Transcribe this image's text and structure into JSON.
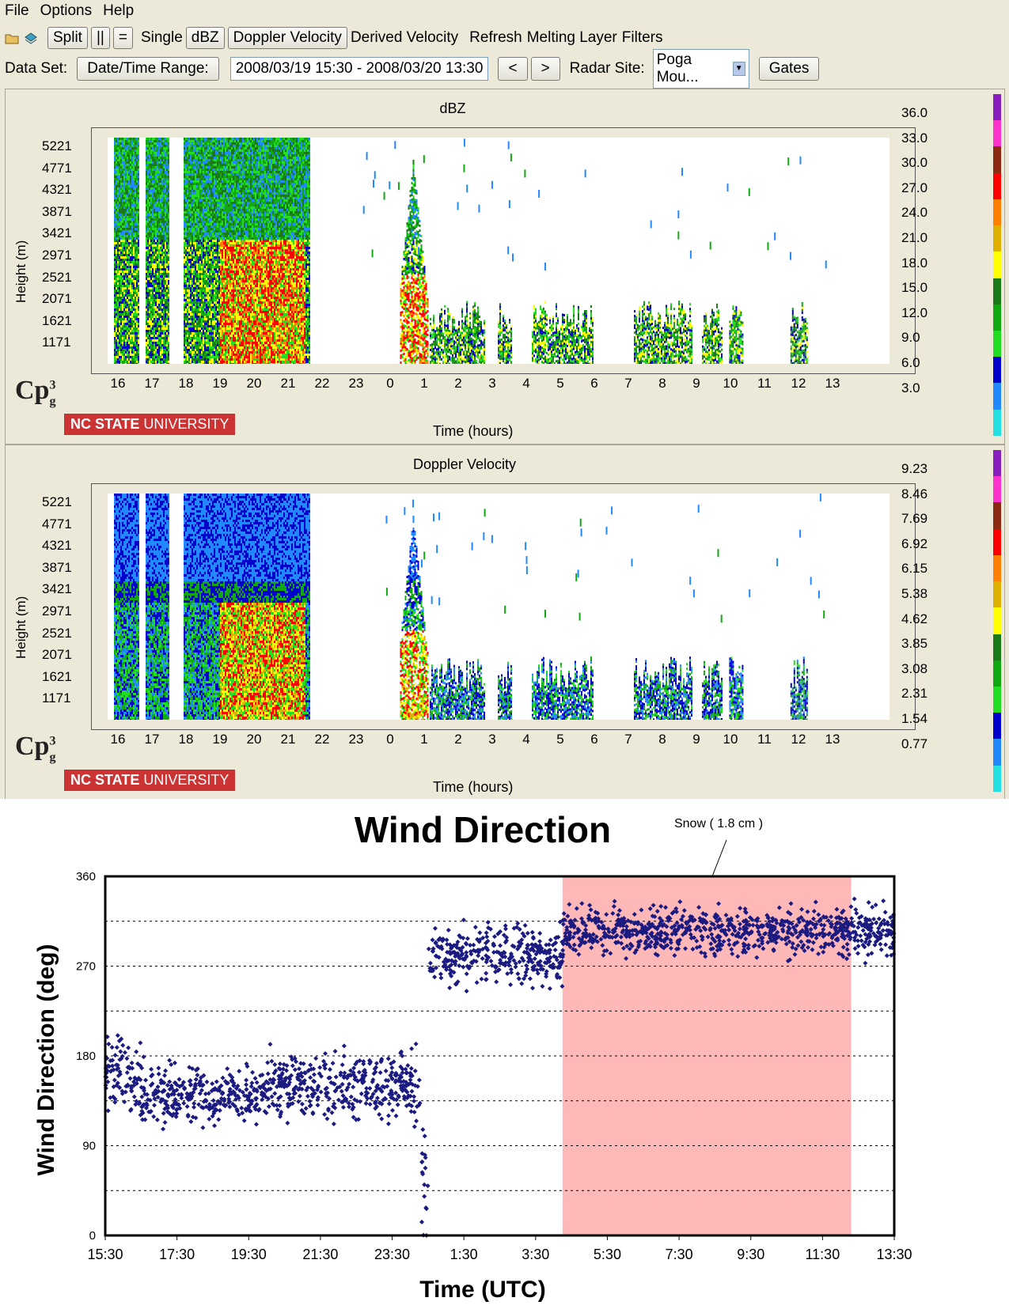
{
  "menu": [
    "File",
    "Options",
    "Help"
  ],
  "toolbar": {
    "split": "Split",
    "pipes": "||",
    "equal": "=",
    "single": "Single",
    "dbz": "dBZ",
    "doppler": "Doppler Velocity",
    "derived": "Derived Velocity",
    "refresh": "Refresh",
    "melting": "Melting Layer",
    "filters": "Filters"
  },
  "dataset": {
    "label": "Data Set:",
    "range_button": "Date/Time Range:",
    "range_value": "2008/03/19 15:30 - 2008/03/20 13:30",
    "prev": "<",
    "next": ">",
    "radar_label": "Radar Site:",
    "radar_value": "Poga Mou...",
    "gates": "Gates"
  },
  "logo": {
    "cp": "Cp",
    "cp_sup": "3",
    "cp_sub": "g",
    "ncs_bold": "NC STATE",
    "ncs_normal": " UNIVERSITY"
  },
  "panels": [
    {
      "title": "dBZ",
      "ylabel": "Height (m)",
      "xlabel": "Time (hours)",
      "yticks": [
        "5221",
        "4771",
        "4321",
        "3871",
        "3421",
        "2971",
        "2521",
        "2071",
        "1621",
        "1171"
      ],
      "xticks": [
        "16",
        "17",
        "18",
        "19",
        "20",
        "21",
        "22",
        "23",
        "0",
        "1",
        "2",
        "3",
        "4",
        "5",
        "6",
        "7",
        "8",
        "9",
        "10",
        "11",
        "12",
        "13"
      ],
      "colorbar_labels": [
        "36.0",
        "33.0",
        "30.0",
        "27.0",
        "24.0",
        "21.0",
        "18.0",
        "15.0",
        "12.0",
        "9.0",
        "6.0",
        "3.0"
      ],
      "colors": [
        "#8a1fbf",
        "#ff33cc",
        "#8b2a10",
        "#ff0000",
        "#ff7f00",
        "#e0b000",
        "#ffff00",
        "#1a7a1a",
        "#12a812",
        "#22dd22",
        "#0000cc",
        "#2288ff",
        "#22e0e0"
      ]
    },
    {
      "title": "Doppler Velocity",
      "ylabel": "Height (m)",
      "xlabel": "Time (hours)",
      "yticks": [
        "5221",
        "4771",
        "4321",
        "3871",
        "3421",
        "2971",
        "2521",
        "2071",
        "1621",
        "1171"
      ],
      "xticks": [
        "16",
        "17",
        "18",
        "19",
        "20",
        "21",
        "22",
        "23",
        "0",
        "1",
        "2",
        "3",
        "4",
        "5",
        "6",
        "7",
        "8",
        "9",
        "10",
        "11",
        "12",
        "13"
      ],
      "colorbar_labels": [
        "9.23",
        "8.46",
        "7.69",
        "6.92",
        "6.15",
        "5.38",
        "4.62",
        "3.85",
        "3.08",
        "2.31",
        "1.54",
        "0.77"
      ],
      "colors": [
        "#8a1fbf",
        "#ff33cc",
        "#8b2a10",
        "#ff0000",
        "#ff7f00",
        "#e0b000",
        "#ffff00",
        "#1a7a1a",
        "#12a812",
        "#22dd22",
        "#0000cc",
        "#2288ff",
        "#22e0e0"
      ]
    }
  ],
  "chart_data": {
    "type": "scatter",
    "title": "Wind Direction",
    "xlabel": "Time (UTC)",
    "ylabel": "Wind Direction (deg)",
    "ylim": [
      0,
      360
    ],
    "yticks": [
      "0",
      "90",
      "180",
      "270",
      "360"
    ],
    "xticks": [
      "15:30",
      "17:30",
      "19:30",
      "21:30",
      "23:30",
      "1:30",
      "3:30",
      "5:30",
      "7:30",
      "9:30",
      "11:30",
      "13:30"
    ],
    "xlim_hours": [
      0,
      22
    ],
    "grid": "dashed horizontal every 45",
    "annotation": "Snow ( 1.8 cm )",
    "shaded_region_hours": [
      12.75,
      20.8
    ],
    "shade_color": "#ffb8b8",
    "point_color": "#1a1a80",
    "segments": [
      {
        "from": 0.0,
        "to": 1.0,
        "mean": 160,
        "spread": 30
      },
      {
        "from": 1.0,
        "to": 4.5,
        "mean": 140,
        "spread": 22
      },
      {
        "from": 4.5,
        "to": 8.8,
        "mean": 150,
        "spread": 25
      },
      {
        "from": 8.8,
        "to": 9.0,
        "mean": 60,
        "spread": 60
      },
      {
        "from": 9.0,
        "to": 12.75,
        "mean": 280,
        "spread": 22
      },
      {
        "from": 12.75,
        "to": 22.0,
        "mean": 305,
        "spread": 18
      }
    ]
  }
}
